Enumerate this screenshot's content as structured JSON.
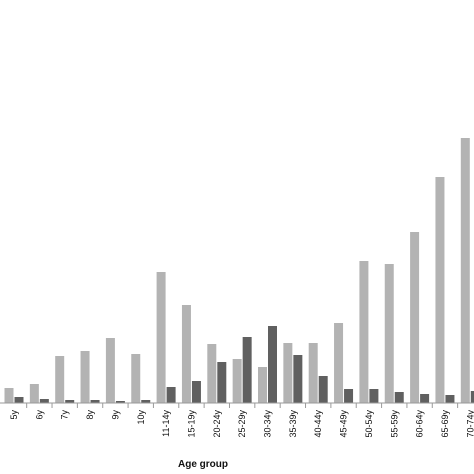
{
  "chart_data": {
    "type": "bar",
    "title": "",
    "xlabel": "Age group",
    "ylabel": "",
    "categories": [
      "5y",
      "6y",
      "7y",
      "8y",
      "9y",
      "10y",
      "11-14y",
      "15-19y",
      "20-24y",
      "25-29y",
      "30-34y",
      "35-39y",
      "40-44y",
      "45-49y",
      "50-54y",
      "55-59y",
      "60-64y",
      "65-69y",
      "70-74y"
    ],
    "series": [
      {
        "color": "#b3b3b3",
        "values": [
          15,
          19,
          47,
          52,
          65,
          49,
          131,
          98,
          59,
          44,
          36,
          60,
          60,
          80,
          142,
          139,
          171,
          226,
          265
        ]
      },
      {
        "color": "#606060",
        "values": [
          6,
          4,
          3,
          3,
          2,
          3,
          16,
          22,
          41,
          66,
          77,
          48,
          27,
          14,
          14,
          11,
          9,
          8,
          12
        ]
      }
    ],
    "ylim": [
      0,
      275
    ],
    "grid": false,
    "legend": "none"
  }
}
